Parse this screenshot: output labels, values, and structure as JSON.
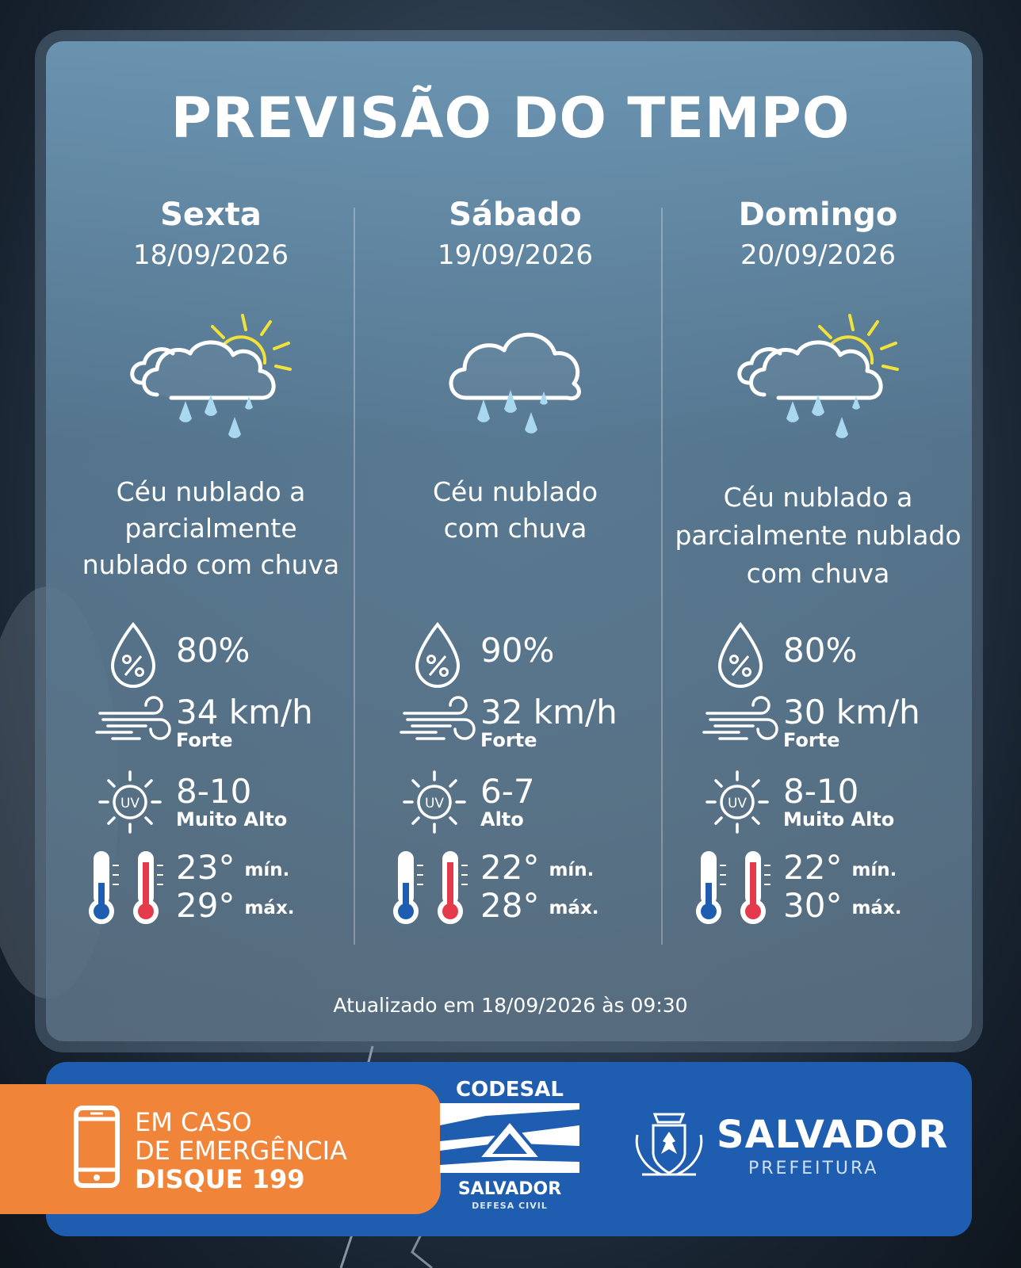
{
  "title": "PREVISÃO DO TEMPO",
  "days": [
    {
      "name": "Sexta",
      "date": "18/09/2026",
      "icon": "cloud-sun-rain-icon",
      "description": "Céu nublado a parcialmente nublado com chuva",
      "humidity": "80%",
      "wind_speed": "34 km/h",
      "wind_label": "Forte",
      "uv_index": "8-10",
      "uv_label": "Muito Alto",
      "temp_min": "23°",
      "temp_min_label": "mín.",
      "temp_max": "29°",
      "temp_max_label": "máx."
    },
    {
      "name": "Sábado",
      "date": "19/09/2026",
      "icon": "cloud-rain-icon",
      "description": "Céu nublado com chuva",
      "humidity": "90%",
      "wind_speed": "32 km/h",
      "wind_label": "Forte",
      "uv_index": "6-7",
      "uv_label": "Alto",
      "temp_min": "22°",
      "temp_min_label": "mín.",
      "temp_max": "28°",
      "temp_max_label": "máx."
    },
    {
      "name": "Domingo",
      "date": "20/09/2026",
      "icon": "cloud-sun-rain-icon",
      "description": "Céu nublado a parcialmente nublado com chuva",
      "humidity": "80%",
      "wind_speed": "30 km/h",
      "wind_label": "Forte",
      "uv_index": "8-10",
      "uv_label": "Muito Alto",
      "temp_min": "22°",
      "temp_min_label": "mín.",
      "temp_max": "30°",
      "temp_max_label": "máx."
    }
  ],
  "uv_icon_text": "UV",
  "updated": "Atualizado em 18/09/2026 às 09:30",
  "footer": {
    "emergency_line1": "EM CASO",
    "emergency_line2": "DE EMERGÊNCIA",
    "emergency_line3": "DISQUE 199",
    "codesal_top": "CODESAL",
    "codesal_bottom": "SALVADOR",
    "codesal_sub": "DEFESA CIVIL",
    "salvador_name": "SALVADOR",
    "salvador_sub": "PREFEITURA"
  },
  "colors": {
    "panel": "#6d8fa8",
    "footer": "#1f5db0",
    "emergency": "#f0853a",
    "rain_drop": "#a8d8f0",
    "sun": "#f2e13a",
    "thermo_cold": "#1f5db0",
    "thermo_hot": "#e43a4c"
  }
}
